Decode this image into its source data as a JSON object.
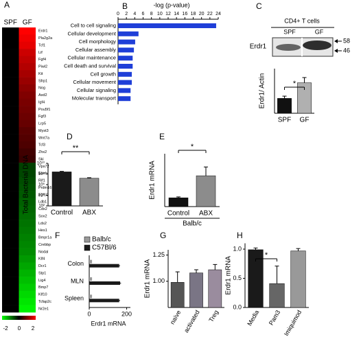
{
  "chart_data": [
    {
      "type": "heatmap",
      "panel": "A",
      "columns": [
        "SPF",
        "GF"
      ],
      "rows": [
        "Erdr1",
        "Pla2g2a",
        "Tcf1",
        "Lif",
        "Fgf4",
        "Piwl2",
        "Kit",
        "Sfrp1",
        "Nog",
        "Axd2",
        "Igf4",
        "Pou5f1",
        "Fgf3",
        "Lrp5",
        "Myst3",
        "Wnt7a",
        "Tcf3",
        "Zhx2",
        "Ski",
        "Vps72",
        "Esrrb",
        "Rif1",
        "Prdm16",
        "Fgf10",
        "Ldb1",
        "Cdx2",
        "Sox2",
        "Lds2",
        "Hes1",
        "Bmpr1a",
        "Crebbp",
        "Nodal",
        "Klf4",
        "Dcr1",
        "Stp1",
        "Lig4",
        "Bmp7",
        "Klf10",
        "Tcfap2c",
        "Nr2e1"
      ],
      "values": [
        [
          0,
          2
        ],
        [
          0,
          1.9
        ],
        [
          0,
          1.8
        ],
        [
          0,
          1.6
        ],
        [
          0,
          1.5
        ],
        [
          0,
          1.4
        ],
        [
          0,
          1.3
        ],
        [
          0,
          1.2
        ],
        [
          0,
          1.1
        ],
        [
          0,
          1
        ],
        [
          0,
          0.95
        ],
        [
          0,
          0.9
        ],
        [
          0,
          0.85
        ],
        [
          0,
          0.8
        ],
        [
          0,
          0.7
        ],
        [
          0,
          0.65
        ],
        [
          0,
          0.6
        ],
        [
          0,
          0.5
        ],
        [
          0,
          0.45
        ],
        [
          0,
          -0.5
        ],
        [
          0,
          -0.55
        ],
        [
          0,
          -0.6
        ],
        [
          0,
          -0.65
        ],
        [
          0,
          -0.7
        ],
        [
          0,
          -0.75
        ],
        [
          0,
          -0.8
        ],
        [
          0,
          -0.85
        ],
        [
          0,
          -0.9
        ],
        [
          0,
          -0.95
        ],
        [
          0,
          -1
        ],
        [
          0,
          -1.05
        ],
        [
          0,
          -1.1
        ],
        [
          0,
          -1.2
        ],
        [
          0,
          -1.3
        ],
        [
          0,
          -1.4
        ],
        [
          0,
          -1.5
        ],
        [
          0,
          -1.6
        ],
        [
          0,
          -1.7
        ],
        [
          0,
          -1.8
        ],
        [
          0,
          -1.9
        ]
      ],
      "clim": [
        -2,
        2
      ],
      "cbar_ticks": [
        -2,
        0,
        2
      ]
    },
    {
      "type": "hbar",
      "panel": "B",
      "title": "-log (p-value)",
      "categories": [
        "Cell to cell signaling",
        "Cellular development",
        "Cell morphology",
        "Cellular assembly",
        "Cellular maintenance",
        "Cell death and survival",
        "Cell growth",
        "Cellular movement",
        "Cellular signaling",
        "Molecular transport"
      ],
      "values": [
        23.5,
        4.9,
        4.1,
        3.8,
        3.5,
        3.5,
        3.3,
        3.3,
        3.0,
        3.0
      ],
      "color": "#1f3fd8",
      "xlim": [
        0,
        24
      ],
      "xticks": [
        0,
        2,
        4,
        6,
        8,
        10,
        12,
        14,
        16,
        18,
        20,
        22,
        24
      ]
    },
    {
      "type": "bar",
      "panel": "C",
      "blot_title": "CD4+ T cells",
      "lanes": [
        "SPF",
        "GF"
      ],
      "blot_label": "Erdr1",
      "markers": [
        58,
        46
      ],
      "ylabel": "Erdr1/ Actin",
      "categories": [
        "SPF",
        "GF"
      ],
      "values": [
        1,
        2.05
      ],
      "errors": [
        0.15,
        0.35
      ],
      "colors": [
        "#111111",
        "#b0b0b0"
      ],
      "ylim": [
        0,
        3
      ],
      "significance": "*"
    },
    {
      "type": "bar",
      "panel": "D",
      "ylabel": "Total Bacterial DNA",
      "categories": [
        "Control",
        "ABX"
      ],
      "values": [
        250000000,
        16000000
      ],
      "errors": [
        60000000,
        4000000
      ],
      "colors": [
        "#1a1a1a",
        "#8c8c8c"
      ],
      "log_scale": true,
      "ylim": [
        100,
        10000000000
      ],
      "yticks": [
        {
          "value": 10000000000,
          "label": "10¹⁰"
        },
        {
          "value": 100000000,
          "label": "10⁸"
        },
        {
          "value": 1000000,
          "label": "10⁶"
        },
        {
          "value": 10000,
          "label": "10⁴"
        },
        {
          "value": 100,
          "label": "10²"
        }
      ],
      "significance": "**"
    },
    {
      "type": "bar",
      "panel": "E",
      "ylabel": "Erdr1 mRNA",
      "categories": [
        "Control",
        "ABX"
      ],
      "group_label": "Balb/c",
      "values": [
        1,
        3.5
      ],
      "errors": [
        0.1,
        1.0
      ],
      "colors": [
        "#111111",
        "#8c8c8c"
      ],
      "ylim": [
        0,
        6
      ],
      "significance": "*"
    },
    {
      "type": "hbar_grouped",
      "panel": "F",
      "xlabel": "Erdr1 mRNA",
      "categories": [
        "Colon",
        "MLN",
        "Spleen"
      ],
      "series": [
        {
          "name": "Balb/c",
          "color": "#999999",
          "values": [
            15,
            15,
            15
          ]
        },
        {
          "name": "C57Bl/6",
          "color": "#1a1a1a",
          "values": [
            160,
            165,
            160
          ],
          "errors": [
            5,
            5,
            5
          ]
        }
      ],
      "xlim": [
        0,
        220
      ],
      "xticks": [
        0,
        200
      ]
    },
    {
      "type": "bar",
      "panel": "G",
      "ylabel": "Erdr1 mRNA",
      "categories": [
        "naïve",
        "activated",
        "Treg"
      ],
      "values": [
        0.99,
        1.08,
        1.11
      ],
      "errors": [
        0.1,
        0.03,
        0.05
      ],
      "colors": [
        "#555555",
        "#7a7585",
        "#9a8c9e"
      ],
      "ylim": [
        0.75,
        1.3
      ],
      "yticks": [
        {
          "value": 1.0,
          "label": "1.00"
        },
        {
          "value": 1.25,
          "label": "1.25"
        }
      ]
    },
    {
      "type": "bar",
      "panel": "H",
      "ylabel": "Erdr1 mRNA",
      "categories": [
        "Media",
        "Pam3",
        "Imiquimod"
      ],
      "values": [
        0.99,
        0.41,
        0.97
      ],
      "errors": [
        0.03,
        0.3,
        0.04
      ],
      "colors": [
        "#1a1a1a",
        "#666666",
        "#999999"
      ],
      "ylim": [
        0,
        1.1
      ],
      "yticks": [
        {
          "value": 0.0,
          "label": "0.0"
        },
        {
          "value": 0.5,
          "label": "0.5"
        },
        {
          "value": 1.0,
          "label": "1.0"
        }
      ],
      "significance": "*"
    }
  ]
}
